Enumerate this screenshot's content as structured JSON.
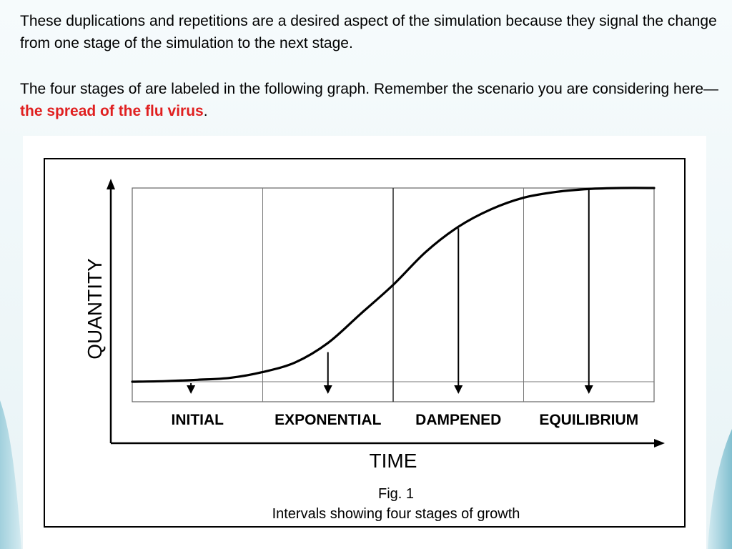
{
  "slide": {
    "paragraph_1": "These duplications and repetitions are a desired aspect of the simulation because they signal the change from one stage of the simulation to the next stage.",
    "paragraph_2_prefix": "The four stages of are labeled in the following graph. Remember the scenario you are considering here—",
    "paragraph_2_highlight": "the spread of the flu virus",
    "paragraph_2_suffix": ".",
    "highlight_color": "#e02020"
  },
  "chart_data": {
    "type": "line",
    "xlabel": "TIME",
    "ylabel": "QUANTITY",
    "caption_line_1": "Fig. 1",
    "caption_line_2": "Intervals showing four stages of growth",
    "stage_labels": [
      "INITIAL",
      "EXPONENTIAL",
      "DAMPENED",
      "EQUILIBRIUM"
    ],
    "xlim": [
      0,
      4
    ],
    "ylim": [
      0,
      1
    ],
    "grid": true,
    "series": [
      {
        "x": [
          0,
          0.25,
          0.5,
          0.75,
          1.0,
          1.25,
          1.5,
          1.75,
          2.0,
          2.25,
          2.5,
          2.75,
          3.0,
          3.25,
          3.5,
          3.75,
          4.0
        ],
        "values": [
          0.0,
          0.003,
          0.01,
          0.02,
          0.05,
          0.1,
          0.2,
          0.35,
          0.5,
          0.67,
          0.8,
          0.89,
          0.95,
          0.98,
          0.995,
          1.0,
          1.0
        ]
      }
    ],
    "stage_arrows": [
      {
        "x": 0.45,
        "y": 0.0
      },
      {
        "x": 1.5,
        "y": 0.16
      },
      {
        "x": 2.5,
        "y": 0.8
      },
      {
        "x": 3.5,
        "y": 1.0
      }
    ]
  }
}
